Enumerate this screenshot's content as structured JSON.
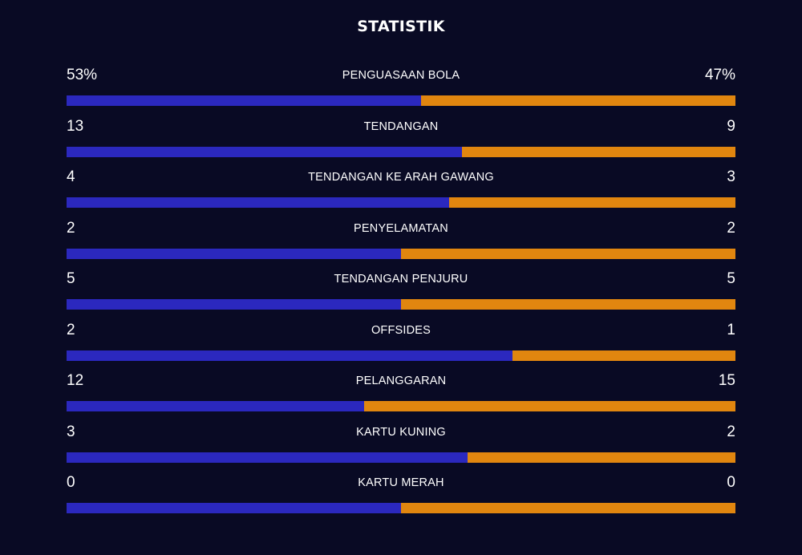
{
  "title": "STATISTIK",
  "colors": {
    "home": "#2b28be",
    "away": "#e1860f",
    "background": "#090a24"
  },
  "stats": [
    {
      "label": "PENGUASAAN BOLA",
      "home": "53%",
      "away": "47%",
      "home_value": 53,
      "away_value": 47
    },
    {
      "label": "TENDANGAN",
      "home": "13",
      "away": "9",
      "home_value": 13,
      "away_value": 9
    },
    {
      "label": "TENDANGAN KE ARAH GAWANG",
      "home": "4",
      "away": "3",
      "home_value": 4,
      "away_value": 3
    },
    {
      "label": "PENYELAMATAN",
      "home": "2",
      "away": "2",
      "home_value": 2,
      "away_value": 2
    },
    {
      "label": "TENDANGAN PENJURU",
      "home": "5",
      "away": "5",
      "home_value": 5,
      "away_value": 5
    },
    {
      "label": "OFFSIDES",
      "home": "2",
      "away": "1",
      "home_value": 2,
      "away_value": 1
    },
    {
      "label": "PELANGGARAN",
      "home": "12",
      "away": "15",
      "home_value": 12,
      "away_value": 15
    },
    {
      "label": "KARTU KUNING",
      "home": "3",
      "away": "2",
      "home_value": 3,
      "away_value": 2
    },
    {
      "label": "KARTU MERAH",
      "home": "0",
      "away": "0",
      "home_value": 0,
      "away_value": 0
    }
  ]
}
